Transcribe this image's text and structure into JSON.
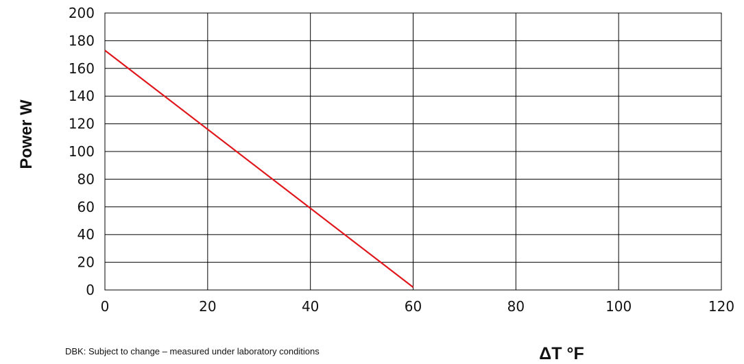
{
  "chart_data": {
    "type": "line",
    "title": "",
    "xlabel": "ΔT °F",
    "ylabel": "Power W",
    "xlim": [
      0,
      120
    ],
    "ylim": [
      0,
      200
    ],
    "x_ticks": [
      0,
      20,
      40,
      60,
      80,
      100,
      120
    ],
    "y_ticks": [
      0,
      20,
      40,
      60,
      80,
      100,
      120,
      140,
      160,
      180,
      200
    ],
    "grid": true,
    "legend": "none",
    "series": [
      {
        "color": "#e0161b",
        "x": [
          0,
          60
        ],
        "y": [
          173,
          2
        ]
      }
    ],
    "footnote": "DBK: Subject to change – measured under laboratory conditions"
  }
}
